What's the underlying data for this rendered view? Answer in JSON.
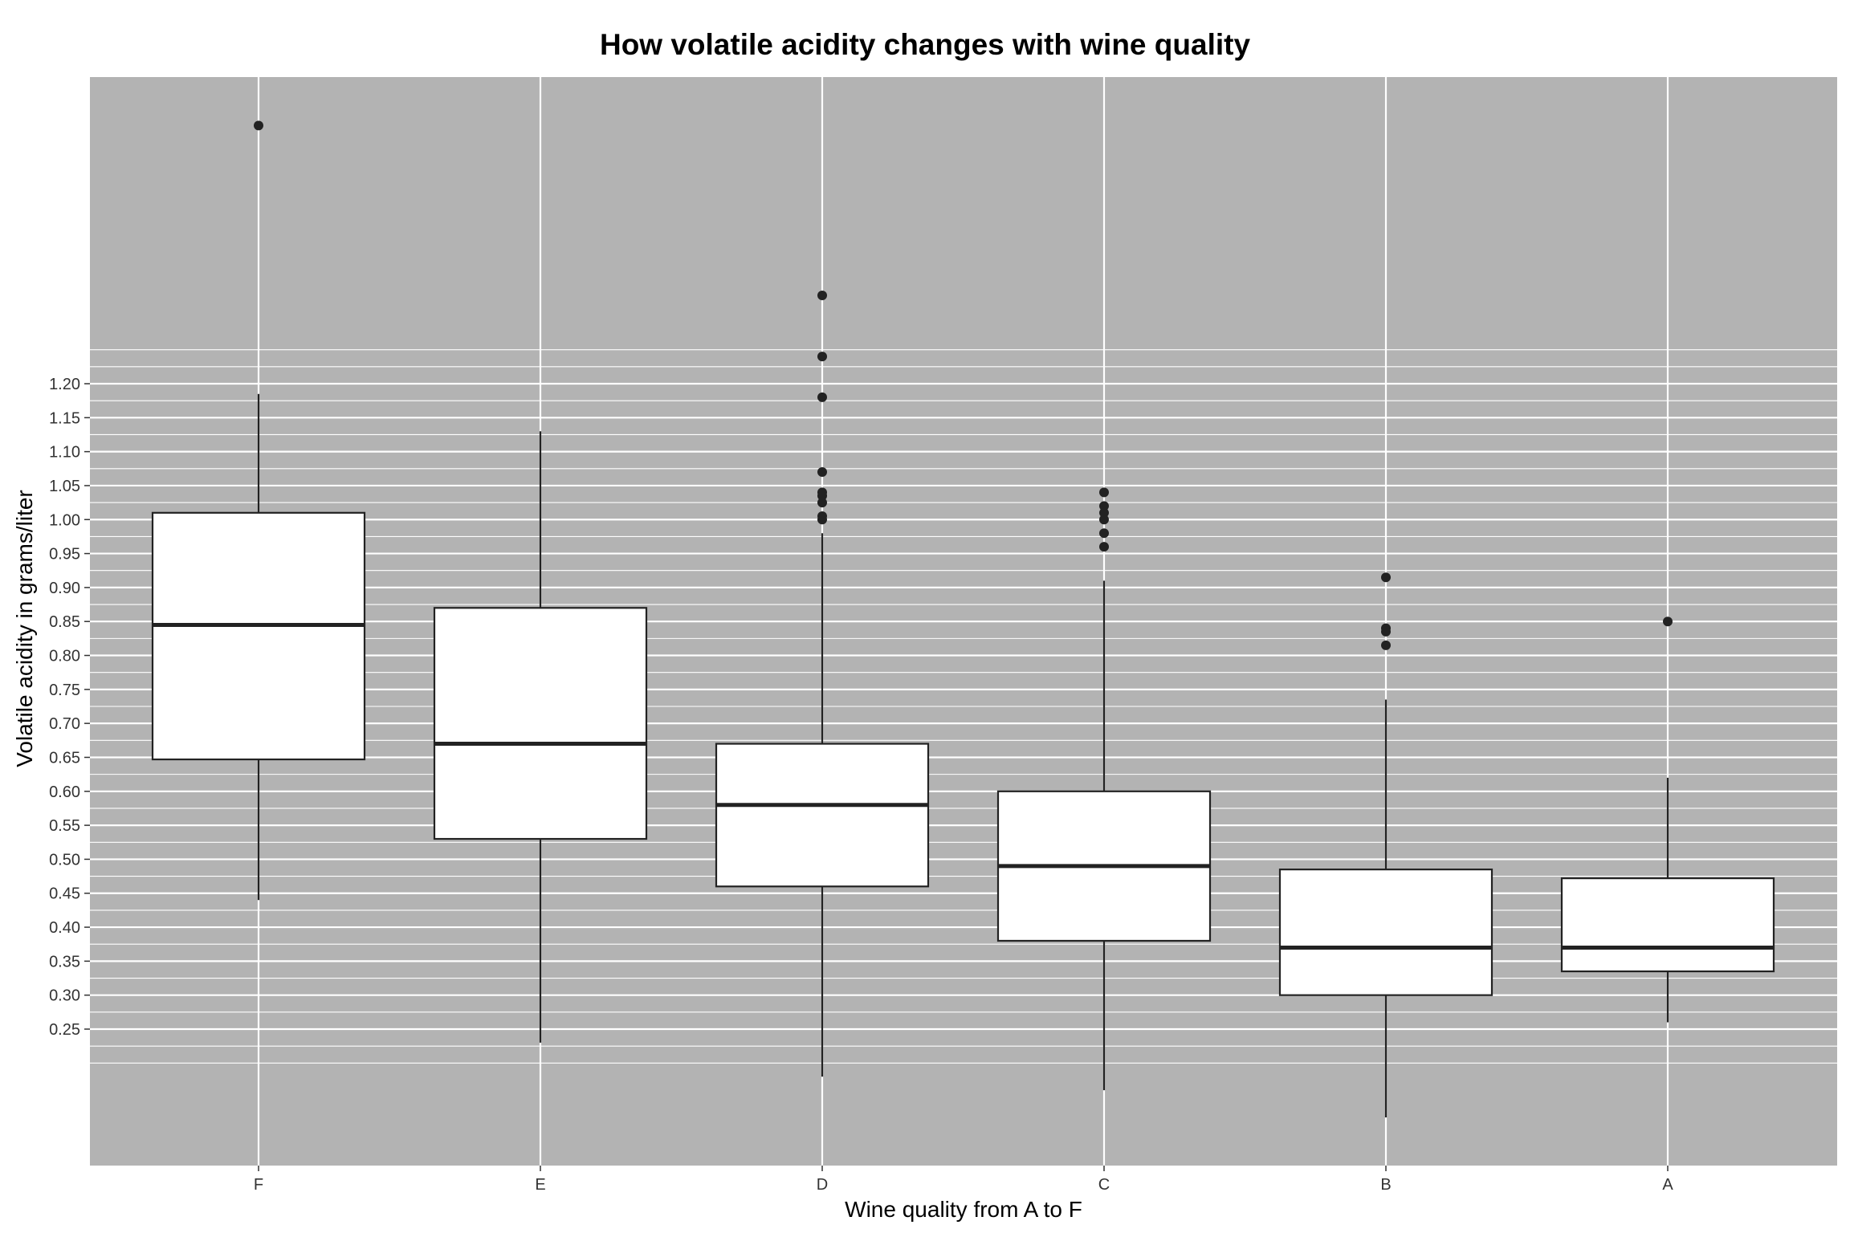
{
  "chart_data": {
    "type": "boxplot",
    "title": "How volatile acidity changes with wine quality",
    "xlabel": "Wine quality from A to F",
    "ylabel": "Volatile acidity in grams/liter",
    "categories": [
      "F",
      "E",
      "D",
      "C",
      "B",
      "A"
    ],
    "y_ticks": [
      "0.25",
      "0.30",
      "0.35",
      "0.40",
      "0.45",
      "0.50",
      "0.55",
      "0.60",
      "0.65",
      "0.70",
      "0.75",
      "0.80",
      "0.85",
      "0.90",
      "0.95",
      "1.00",
      "1.05",
      "1.10",
      "1.15",
      "1.20"
    ],
    "ylim": [
      0.1,
      1.7
    ],
    "grid": true,
    "background": "#b3b3b3",
    "grid_color": "#ffffff",
    "box_fill": "#ffffff",
    "line_color": "#222222",
    "boxes": [
      {
        "category": "F",
        "min": 0.44,
        "q1": 0.647,
        "median": 0.845,
        "q3": 1.01,
        "max": 1.185,
        "outliers": [
          1.58
        ]
      },
      {
        "category": "E",
        "min": 0.23,
        "q1": 0.53,
        "median": 0.67,
        "q3": 0.87,
        "max": 1.13,
        "outliers": []
      },
      {
        "category": "D",
        "min": 0.18,
        "q1": 0.46,
        "median": 0.58,
        "q3": 0.67,
        "max": 0.98,
        "outliers": [
          1.33,
          1.24,
          1.18,
          1.07,
          1.04,
          1.035,
          1.025,
          1.005,
          1.0
        ]
      },
      {
        "category": "C",
        "min": 0.16,
        "q1": 0.38,
        "median": 0.49,
        "q3": 0.6,
        "max": 0.91,
        "outliers": [
          1.04,
          1.02,
          1.01,
          1.0,
          0.98,
          0.96
        ]
      },
      {
        "category": "B",
        "min": 0.12,
        "q1": 0.3,
        "median": 0.37,
        "q3": 0.485,
        "max": 0.735,
        "outliers": [
          0.915,
          0.84,
          0.835,
          0.815
        ]
      },
      {
        "category": "A",
        "min": 0.26,
        "q1": 0.335,
        "median": 0.37,
        "q3": 0.472,
        "max": 0.62,
        "outliers": [
          0.85
        ]
      }
    ]
  }
}
